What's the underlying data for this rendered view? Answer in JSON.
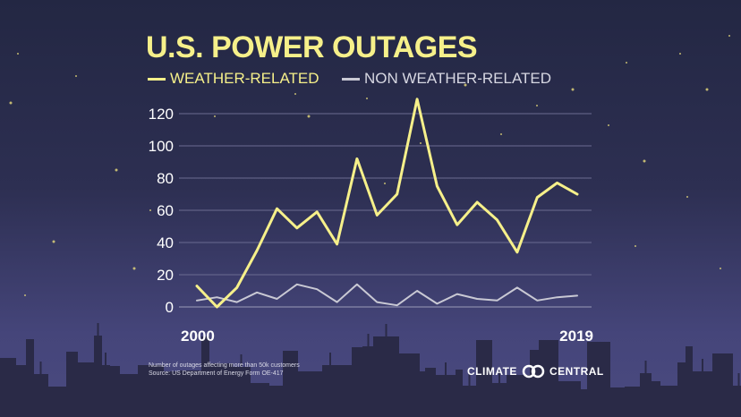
{
  "title": "U.S. POWER OUTAGES",
  "legend": {
    "weather": "WEATHER-RELATED",
    "nonweather": "NON WEATHER-RELATED"
  },
  "colors": {
    "weather": "#f6f08a",
    "nonweather": "#c9c9d4",
    "grid": "#6b6b91"
  },
  "footnote": {
    "line1": "Number of outages affecting more than 50k customers",
    "line2": "Source: US Department of Energy Form OE-417"
  },
  "brand": {
    "left": "CLIMATE",
    "right": "CENTRAL",
    "icon": "climate-central-logo-icon"
  },
  "chart_data": {
    "type": "line",
    "title": "U.S. POWER OUTAGES",
    "x": [
      2000,
      2001,
      2002,
      2003,
      2004,
      2005,
      2006,
      2007,
      2008,
      2009,
      2010,
      2011,
      2012,
      2013,
      2014,
      2015,
      2016,
      2017,
      2018,
      2019
    ],
    "x_tick_labels": [
      "2000",
      "2019"
    ],
    "y_ticks": [
      0,
      20,
      40,
      60,
      80,
      100,
      120
    ],
    "ylim": [
      0,
      130
    ],
    "grid": true,
    "legend_position": "top-left",
    "series": [
      {
        "name": "WEATHER-RELATED",
        "values": [
          13,
          0,
          12,
          35,
          61,
          49,
          59,
          39,
          92,
          57,
          70,
          129,
          75,
          51,
          65,
          54,
          34,
          68,
          77,
          70
        ]
      },
      {
        "name": "NON WEATHER-RELATED",
        "values": [
          4,
          6,
          3,
          9,
          5,
          14,
          11,
          3,
          14,
          3,
          1,
          10,
          2,
          8,
          5,
          4,
          12,
          4,
          6,
          7
        ]
      }
    ]
  }
}
